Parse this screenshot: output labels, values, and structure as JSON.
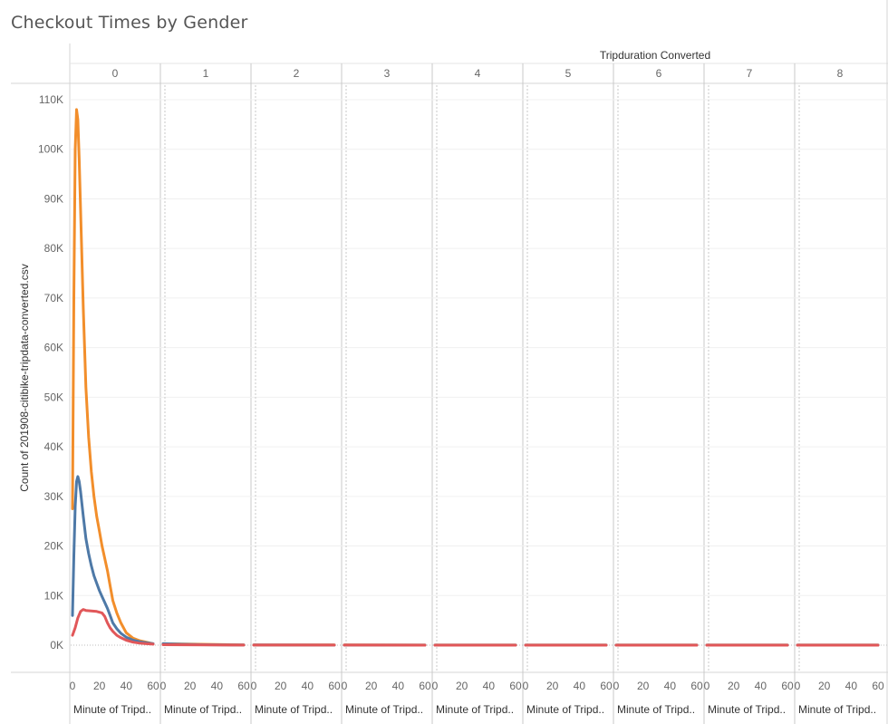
{
  "title": "Checkout Times by Gender",
  "chart_data": {
    "type": "line",
    "title": "Checkout Times by Gender",
    "column_header": "Tripduration Converted",
    "panels": [
      "0",
      "1",
      "2",
      "3",
      "4",
      "5",
      "6",
      "7",
      "8"
    ],
    "xlabel": "Minute of Tripd..",
    "xticks": [
      0,
      20,
      40,
      60
    ],
    "xlim": [
      0,
      60
    ],
    "ylabel": "Count of 201908-citibike-tripdata-converted.csv",
    "ylim": [
      0,
      110000
    ],
    "yticks": [
      0,
      10000,
      20000,
      30000,
      40000,
      50000,
      60000,
      70000,
      80000,
      90000,
      100000,
      110000
    ],
    "ytick_labels": [
      "0K",
      "10K",
      "20K",
      "30K",
      "40K",
      "50K",
      "60K",
      "70K",
      "80K",
      "90K",
      "100K",
      "110K"
    ],
    "grid": true,
    "legend": "none",
    "series": [
      {
        "color": "#f28e2b",
        "panel_values": [
          [
            [
              0,
              27500
            ],
            [
              1,
              70000
            ],
            [
              2,
              100000
            ],
            [
              3,
              108000
            ],
            [
              4,
              106000
            ],
            [
              5,
              98000
            ],
            [
              6,
              88000
            ],
            [
              7,
              78000
            ],
            [
              8,
              68000
            ],
            [
              10,
              52000
            ],
            [
              12,
              42000
            ],
            [
              14,
              35000
            ],
            [
              16,
              30000
            ],
            [
              18,
              26000
            ],
            [
              20,
              23000
            ],
            [
              22,
              20000
            ],
            [
              24,
              17500
            ],
            [
              26,
              15000
            ],
            [
              28,
              12000
            ],
            [
              30,
              9000
            ],
            [
              33,
              6500
            ],
            [
              36,
              4500
            ],
            [
              40,
              2500
            ],
            [
              45,
              1400
            ],
            [
              50,
              900
            ],
            [
              55,
              600
            ],
            [
              60,
              300
            ]
          ],
          [
            [
              0,
              300
            ],
            [
              60,
              60
            ]
          ],
          [
            [
              0,
              50
            ],
            [
              60,
              30
            ]
          ],
          [
            [
              0,
              30
            ],
            [
              60,
              20
            ]
          ],
          [
            [
              0,
              20
            ],
            [
              60,
              15
            ]
          ],
          [
            [
              0,
              15
            ],
            [
              60,
              10
            ]
          ],
          [
            [
              0,
              10
            ],
            [
              60,
              10
            ]
          ],
          [
            [
              0,
              10
            ],
            [
              60,
              10
            ]
          ],
          [
            [
              0,
              10
            ],
            [
              60,
              10
            ]
          ]
        ]
      },
      {
        "color": "#4e79a7",
        "panel_values": [
          [
            [
              0,
              6000
            ],
            [
              1,
              18000
            ],
            [
              2,
              28000
            ],
            [
              3,
              33000
            ],
            [
              4,
              34000
            ],
            [
              5,
              33000
            ],
            [
              6,
              31000
            ],
            [
              7,
              28500
            ],
            [
              8,
              26000
            ],
            [
              10,
              21500
            ],
            [
              12,
              18500
            ],
            [
              14,
              16000
            ],
            [
              16,
              14000
            ],
            [
              18,
              12500
            ],
            [
              20,
              11000
            ],
            [
              22,
              9800
            ],
            [
              24,
              8600
            ],
            [
              26,
              7400
            ],
            [
              28,
              6000
            ],
            [
              30,
              4500
            ],
            [
              33,
              3300
            ],
            [
              36,
              2400
            ],
            [
              40,
              1600
            ],
            [
              45,
              1000
            ],
            [
              50,
              700
            ],
            [
              55,
              500
            ],
            [
              60,
              300
            ]
          ],
          [
            [
              0,
              300
            ],
            [
              10,
              200
            ],
            [
              30,
              100
            ],
            [
              60,
              40
            ]
          ],
          [
            [
              0,
              40
            ],
            [
              60,
              20
            ]
          ],
          [
            [
              0,
              20
            ],
            [
              60,
              15
            ]
          ],
          [
            [
              0,
              15
            ],
            [
              60,
              10
            ]
          ],
          [
            [
              0,
              10
            ],
            [
              60,
              10
            ]
          ],
          [
            [
              0,
              10
            ],
            [
              60,
              10
            ]
          ],
          [
            [
              0,
              10
            ],
            [
              60,
              10
            ]
          ],
          [
            [
              0,
              10
            ],
            [
              60,
              10
            ]
          ]
        ]
      },
      {
        "color": "#e15759",
        "panel_values": [
          [
            [
              0,
              2000
            ],
            [
              2,
              3500
            ],
            [
              4,
              5500
            ],
            [
              6,
              6800
            ],
            [
              8,
              7200
            ],
            [
              10,
              7000
            ],
            [
              14,
              6900
            ],
            [
              18,
              6800
            ],
            [
              22,
              6500
            ],
            [
              24,
              5800
            ],
            [
              26,
              4500
            ],
            [
              28,
              3500
            ],
            [
              30,
              2800
            ],
            [
              33,
              2000
            ],
            [
              36,
              1500
            ],
            [
              40,
              1000
            ],
            [
              45,
              600
            ],
            [
              50,
              400
            ],
            [
              55,
              300
            ],
            [
              60,
              200
            ]
          ],
          [
            [
              0,
              100
            ],
            [
              60,
              20
            ]
          ],
          [
            [
              0,
              15
            ],
            [
              60,
              10
            ]
          ],
          [
            [
              0,
              10
            ],
            [
              60,
              5
            ]
          ],
          [
            [
              0,
              5
            ],
            [
              60,
              5
            ]
          ],
          [
            [
              0,
              5
            ],
            [
              60,
              5
            ]
          ],
          [
            [
              0,
              5
            ],
            [
              60,
              5
            ]
          ],
          [
            [
              0,
              5
            ],
            [
              60,
              5
            ]
          ],
          [
            [
              0,
              5
            ],
            [
              60,
              5
            ]
          ]
        ]
      }
    ]
  }
}
